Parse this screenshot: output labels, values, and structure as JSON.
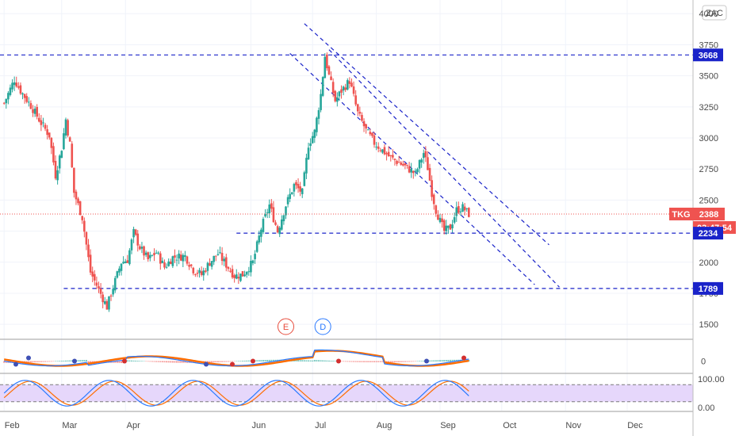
{
  "currency_label": "ZAC",
  "chart_data": {
    "type": "candlestick",
    "symbol": "TKG",
    "last_price": "2388",
    "countdown": "03:47:54",
    "ylim": [
      1380,
      4110
    ],
    "price_ticks": [
      1500,
      1750,
      2000,
      2250,
      2500,
      2750,
      3000,
      3250,
      3500,
      3750,
      4000
    ],
    "price_tick_labels": [
      "1500",
      "1750",
      "2000",
      "2250",
      "2500",
      "2750",
      "3000",
      "3250",
      "3500",
      "3750",
      "4000"
    ],
    "months": [
      {
        "label": "Feb",
        "day": 0
      },
      {
        "label": "Mar",
        "day": 28
      },
      {
        "label": "Apr",
        "day": 59
      },
      {
        "label": "Jun",
        "day": 120
      },
      {
        "label": "Jul",
        "day": 150
      },
      {
        "label": "Aug",
        "day": 181
      },
      {
        "label": "Sep",
        "day": 212
      },
      {
        "label": "Oct",
        "day": 242
      },
      {
        "label": "Nov",
        "day": 273
      },
      {
        "label": "Dec",
        "day": 303
      }
    ],
    "x_range_days": [
      -2,
      335
    ],
    "price_path": [
      [
        0,
        3280
      ],
      [
        5,
        3470
      ],
      [
        8,
        3380
      ],
      [
        13,
        3260
      ],
      [
        18,
        3120
      ],
      [
        22,
        3020
      ],
      [
        25,
        2700
      ],
      [
        28,
        2920
      ],
      [
        30,
        3150
      ],
      [
        32,
        2950
      ],
      [
        34,
        2560
      ],
      [
        38,
        2360
      ],
      [
        42,
        1920
      ],
      [
        46,
        1780
      ],
      [
        50,
        1640
      ],
      [
        53,
        1800
      ],
      [
        57,
        2000
      ],
      [
        60,
        2020
      ],
      [
        63,
        2240
      ],
      [
        66,
        2120
      ],
      [
        70,
        2020
      ],
      [
        74,
        2080
      ],
      [
        78,
        1960
      ],
      [
        82,
        2040
      ],
      [
        88,
        2050
      ],
      [
        92,
        1940
      ],
      [
        96,
        1900
      ],
      [
        100,
        2000
      ],
      [
        104,
        2070
      ],
      [
        108,
        1980
      ],
      [
        112,
        1890
      ],
      [
        116,
        1900
      ],
      [
        121,
        2000
      ],
      [
        125,
        2270
      ],
      [
        129,
        2460
      ],
      [
        133,
        2250
      ],
      [
        137,
        2460
      ],
      [
        141,
        2620
      ],
      [
        145,
        2560
      ],
      [
        148,
        2950
      ],
      [
        151,
        3050
      ],
      [
        154,
        3350
      ],
      [
        156,
        3660
      ],
      [
        158,
        3500
      ],
      [
        161,
        3300
      ],
      [
        164,
        3380
      ],
      [
        168,
        3460
      ],
      [
        172,
        3200
      ],
      [
        176,
        3060
      ],
      [
        180,
        2960
      ],
      [
        184,
        2900
      ],
      [
        188,
        2840
      ],
      [
        192,
        2800
      ],
      [
        196,
        2760
      ],
      [
        200,
        2710
      ],
      [
        204,
        2880
      ],
      [
        206,
        2760
      ],
      [
        208,
        2560
      ],
      [
        210,
        2420
      ],
      [
        212,
        2330
      ],
      [
        214,
        2250
      ],
      [
        217,
        2280
      ],
      [
        220,
        2420
      ],
      [
        223,
        2440
      ],
      [
        226,
        2388
      ]
    ],
    "key_levels": [
      {
        "label": "3668",
        "value": 3668,
        "from_day": -2
      },
      {
        "label": "2234",
        "value": 2234,
        "from_day": 113
      },
      {
        "label": "1789",
        "value": 1789,
        "from_day": 29
      }
    ],
    "channel_lines": [
      {
        "from": [
          139,
          3680
        ],
        "to": [
          258,
          1820
        ]
      },
      {
        "from": [
          146,
          3920
        ],
        "to": [
          265,
          2140
        ]
      },
      {
        "from": [
          158,
          3710
        ],
        "to": [
          270,
          1800
        ]
      }
    ],
    "event_markers": [
      {
        "label": "E",
        "day": 137,
        "color": "#e74c3c"
      },
      {
        "label": "D",
        "day": 155,
        "color": "#2979ff"
      }
    ],
    "macd": {
      "tick_labels": [
        "0"
      ],
      "colors": {
        "macd": "#2979ff",
        "signal": "#ff6d00",
        "hist_up": "#26a69a",
        "hist_down": "#ef5350",
        "cross": "#d32f2f"
      }
    },
    "stochastic": {
      "tick_labels": [
        "100.00",
        "0.00"
      ],
      "upper": 80,
      "lower": 20,
      "band_color": "#e6d7fb",
      "colors": {
        "k": "#2979ff",
        "d": "#ff6d00"
      }
    }
  }
}
